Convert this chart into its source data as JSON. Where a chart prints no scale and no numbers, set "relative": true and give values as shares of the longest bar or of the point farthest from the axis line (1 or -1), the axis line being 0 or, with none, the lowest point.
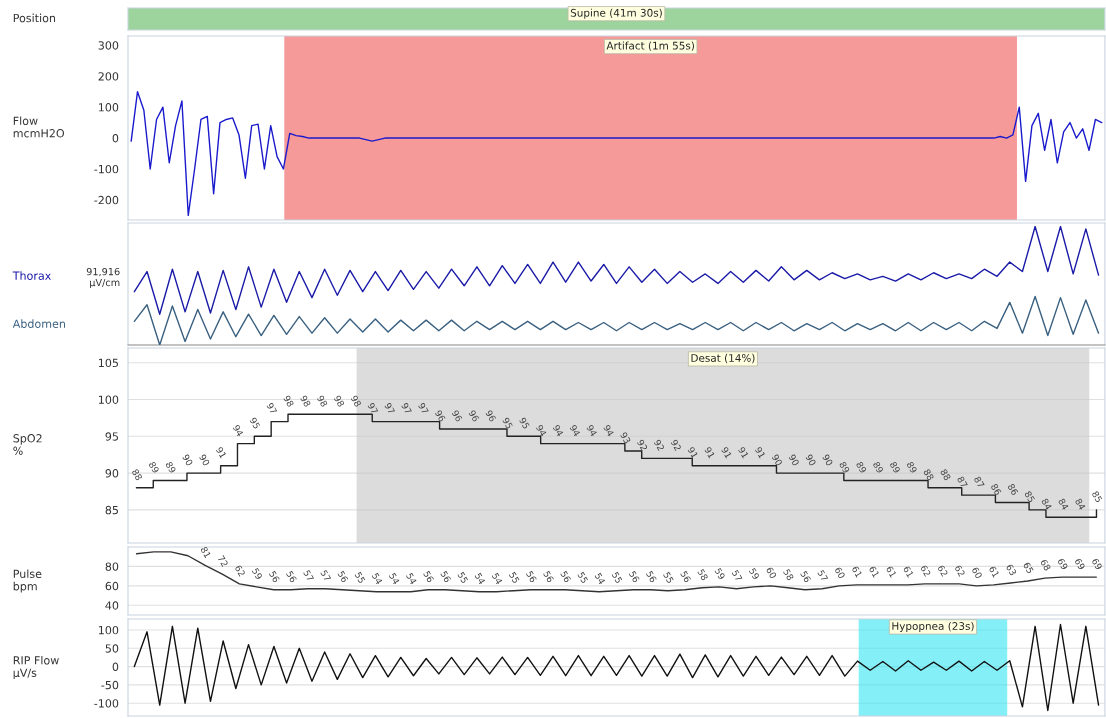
{
  "chart_data": [
    {
      "type": "other",
      "ylabel": "Position",
      "annotations": [
        "Supine (41m 30s)"
      ]
    },
    {
      "type": "line",
      "ylabel": "Flow\nmcmH2O",
      "ylim": [
        -265,
        330
      ],
      "yticks": [
        -200,
        -100,
        0,
        100,
        200,
        300
      ],
      "tick_labels": "y",
      "categories": [
        null,
        null,
        null,
        null,
        null,
        null,
        null,
        null,
        null,
        null,
        null,
        null,
        null,
        null,
        null,
        null,
        null,
        null,
        null,
        null,
        null,
        null,
        null,
        null,
        null,
        null,
        null,
        null,
        null,
        null,
        null,
        null,
        null,
        null,
        null,
        null,
        null,
        null,
        null,
        null,
        null,
        null,
        null,
        null,
        null,
        null,
        null,
        null,
        null,
        null,
        null,
        null,
        null,
        null,
        null,
        null,
        null,
        null,
        null,
        null,
        null,
        null,
        null,
        null,
        null,
        null,
        null,
        null,
        null,
        null,
        null,
        null,
        null,
        null,
        null,
        null,
        null,
        null,
        null,
        null,
        null,
        null,
        null,
        null,
        null,
        null,
        null,
        null,
        null,
        null,
        null,
        null,
        null,
        null,
        null,
        null,
        null,
        null,
        null,
        null,
        null,
        null,
        null,
        null,
        null,
        null,
        null,
        null,
        null,
        null,
        null,
        null,
        null,
        null,
        null,
        null,
        null,
        null,
        null,
        null,
        null,
        null,
        null,
        null,
        null,
        null,
        null,
        null,
        null,
        null,
        null,
        null,
        null,
        null,
        null,
        null,
        null,
        null,
        null,
        null,
        null,
        null,
        null,
        null,
        null,
        null,
        null,
        null,
        null,
        null,
        null,
        null,
        null,
        null
      ],
      "series": [
        {
          "color": "#1a1acd",
          "values": [
            -10,
            150,
            90,
            -100,
            60,
            100,
            -80,
            40,
            120,
            -250,
            -100,
            60,
            70,
            -180,
            50,
            60,
            65,
            10,
            -130,
            40,
            45,
            -100,
            40,
            -60,
            -100,
            15,
            8,
            5,
            0,
            0,
            0,
            0,
            0,
            0,
            0,
            0,
            0,
            -5,
            -10,
            -5,
            0,
            0,
            0,
            0,
            0,
            0,
            0,
            0,
            0,
            0,
            0,
            0,
            0,
            0,
            0,
            0,
            0,
            0,
            0,
            0,
            0,
            0,
            0,
            0,
            0,
            0,
            0,
            0,
            0,
            0,
            0,
            0,
            0,
            0,
            0,
            0,
            0,
            0,
            0,
            0,
            0,
            0,
            0,
            0,
            0,
            0,
            0,
            0,
            0,
            0,
            0,
            0,
            0,
            0,
            0,
            0,
            0,
            0,
            0,
            0,
            0,
            0,
            0,
            0,
            0,
            0,
            0,
            0,
            0,
            0,
            0,
            0,
            0,
            0,
            0,
            0,
            0,
            0,
            0,
            0,
            0,
            0,
            0,
            0,
            0,
            0,
            0,
            0,
            0,
            0,
            0,
            0,
            0,
            0,
            0,
            0,
            0,
            5,
            0,
            10,
            100,
            -140,
            40,
            80,
            -40,
            60,
            -80,
            20,
            50,
            0,
            30,
            -40,
            60,
            50
          ]
        }
      ],
      "annotations": [
        "Artifact (1m 55s)"
      ]
    },
    {
      "type": "line",
      "relative": true,
      "tick_labels": false,
      "annotations": [
        "91,916\nµV/cm"
      ],
      "categories": [
        null,
        null,
        null,
        null,
        null,
        null,
        null,
        null,
        null,
        null,
        null,
        null,
        null,
        null,
        null,
        null,
        null,
        null,
        null,
        null,
        null,
        null,
        null,
        null,
        null,
        null,
        null,
        null,
        null,
        null,
        null,
        null,
        null,
        null,
        null,
        null,
        null,
        null,
        null,
        null,
        null,
        null,
        null,
        null,
        null,
        null,
        null,
        null,
        null,
        null,
        null,
        null,
        null,
        null,
        null,
        null,
        null,
        null,
        null,
        null,
        null,
        null,
        null,
        null,
        null,
        null,
        null,
        null,
        null,
        null,
        null,
        null,
        null,
        null,
        null,
        null,
        null
      ],
      "series": [
        {
          "name": "Thorax",
          "color": "#1a1aa8",
          "values": [
            0.45,
            0.62,
            0.26,
            0.64,
            0.28,
            0.62,
            0.27,
            0.63,
            0.3,
            0.66,
            0.32,
            0.64,
            0.36,
            0.62,
            0.4,
            0.64,
            0.42,
            0.63,
            0.45,
            0.62,
            0.46,
            0.63,
            0.47,
            0.62,
            0.48,
            0.64,
            0.5,
            0.66,
            0.5,
            0.67,
            0.52,
            0.68,
            0.52,
            0.7,
            0.53,
            0.7,
            0.54,
            0.68,
            0.52,
            0.66,
            0.53,
            0.64,
            0.52,
            0.62,
            0.53,
            0.6,
            0.52,
            0.62,
            0.53,
            0.63,
            0.54,
            0.66,
            0.55,
            0.63,
            0.55,
            0.61,
            0.56,
            0.6,
            0.55,
            0.58,
            0.54,
            0.6,
            0.55,
            0.61,
            0.56,
            0.6,
            0.56,
            0.64,
            0.58,
            0.7,
            0.62,
            1.0,
            0.62,
            1.0,
            0.6,
            0.98,
            0.59
          ]
        },
        {
          "name": "Abdomen",
          "color": "#3a6080",
          "values": [
            0.2,
            0.34,
            0.0,
            0.33,
            0.03,
            0.3,
            0.05,
            0.28,
            0.07,
            0.26,
            0.08,
            0.25,
            0.09,
            0.24,
            0.1,
            0.23,
            0.1,
            0.22,
            0.11,
            0.22,
            0.11,
            0.21,
            0.12,
            0.21,
            0.12,
            0.21,
            0.12,
            0.2,
            0.13,
            0.2,
            0.13,
            0.2,
            0.13,
            0.2,
            0.13,
            0.19,
            0.13,
            0.19,
            0.12,
            0.19,
            0.13,
            0.19,
            0.13,
            0.18,
            0.13,
            0.19,
            0.13,
            0.19,
            0.12,
            0.19,
            0.13,
            0.19,
            0.12,
            0.18,
            0.13,
            0.19,
            0.12,
            0.18,
            0.13,
            0.18,
            0.12,
            0.19,
            0.12,
            0.19,
            0.13,
            0.19,
            0.12,
            0.2,
            0.14,
            0.36,
            0.1,
            0.41,
            0.08,
            0.4,
            0.09,
            0.38,
            0.1
          ]
        }
      ]
    },
    {
      "type": "step",
      "ylabel": "SpO2\n%",
      "ylim": [
        80.5,
        107
      ],
      "yticks": [
        85,
        90,
        95,
        100,
        105
      ],
      "tick_labels": "y",
      "grid": "y",
      "data_labels": true,
      "categories": [
        null,
        null,
        null,
        null,
        null,
        null,
        null,
        null,
        null,
        null,
        null,
        null,
        null,
        null,
        null,
        null,
        null,
        null,
        null,
        null,
        null,
        null,
        null,
        null,
        null,
        null,
        null,
        null,
        null,
        null,
        null,
        null,
        null,
        null,
        null,
        null,
        null,
        null,
        null,
        null,
        null,
        null,
        null,
        null,
        null,
        null,
        null,
        null,
        null,
        null,
        null,
        null,
        null,
        null,
        null,
        null,
        null,
        null
      ],
      "series": [
        {
          "color": "#222222",
          "values": [
            88,
            89,
            89,
            90,
            90,
            91,
            94,
            95,
            97,
            98,
            98,
            98,
            98,
            98,
            97,
            97,
            97,
            97,
            96,
            96,
            96,
            96,
            95,
            95,
            94,
            94,
            94,
            94,
            94,
            93,
            92,
            92,
            92,
            91,
            91,
            91,
            91,
            91,
            90,
            90,
            90,
            90,
            89,
            89,
            89,
            89,
            89,
            88,
            88,
            87,
            87,
            86,
            86,
            85,
            84,
            84,
            84,
            85
          ]
        }
      ],
      "annotations": [
        "Desat (14%)"
      ]
    },
    {
      "type": "line",
      "ylabel": "Pulse\nbpm",
      "ylim": [
        30,
        100
      ],
      "yticks": [
        40,
        60,
        80
      ],
      "tick_labels": "y",
      "grid": "y",
      "categories": [
        null,
        null,
        null,
        null,
        null,
        null,
        null,
        null,
        null,
        null,
        null,
        null,
        null,
        null,
        null,
        null,
        null,
        null,
        null,
        null,
        null,
        null,
        null,
        null,
        null,
        null,
        null,
        null,
        null,
        null,
        null,
        null,
        null,
        null,
        null,
        null,
        null,
        null,
        null,
        null,
        null,
        null,
        null,
        null,
        null,
        null,
        null,
        null,
        null,
        null,
        null,
        null,
        null,
        null,
        null,
        null,
        null
      ],
      "series": [
        {
          "color": "#333333",
          "values": [
            93,
            95,
            95,
            91,
            81,
            72,
            62,
            59,
            56,
            56,
            57,
            57,
            56,
            55,
            54,
            54,
            54,
            56,
            56,
            55,
            54,
            54,
            55,
            56,
            56,
            56,
            55,
            54,
            55,
            56,
            56,
            55,
            56,
            58,
            59,
            57,
            59,
            60,
            58,
            56,
            57,
            60,
            61,
            61,
            61,
            61,
            62,
            62,
            62,
            60,
            61,
            63,
            65,
            68,
            69,
            69,
            69
          ],
          "value_labels": [
            null,
            null,
            null,
            null,
            "81",
            "72",
            "62",
            "59",
            "56",
            "56",
            "57",
            "57",
            "56",
            "55",
            "54",
            "54",
            "54",
            "56",
            "56",
            "55",
            "54",
            "54",
            "55",
            "56",
            "56",
            "56",
            "55",
            "54",
            "55",
            "56",
            "56",
            "55",
            "56",
            "58",
            "59",
            "57",
            "59",
            "60",
            "58",
            "56",
            "57",
            "60",
            "61",
            "61",
            "61",
            "61",
            "62",
            "62",
            "62",
            "60",
            "61",
            "63",
            "65",
            "68",
            "69",
            "69",
            "69"
          ]
        }
      ]
    },
    {
      "type": "line",
      "ylabel": "RIP Flow\nµV/s",
      "ylim": [
        -135,
        130
      ],
      "yticks": [
        -100,
        -50,
        0,
        50,
        100
      ],
      "tick_labels": "y",
      "grid": "y",
      "categories": [
        null,
        null,
        null,
        null,
        null,
        null,
        null,
        null,
        null,
        null,
        null,
        null,
        null,
        null,
        null,
        null,
        null,
        null,
        null,
        null,
        null,
        null,
        null,
        null,
        null,
        null,
        null,
        null,
        null,
        null,
        null,
        null,
        null,
        null,
        null,
        null,
        null,
        null,
        null,
        null,
        null,
        null,
        null,
        null,
        null,
        null,
        null,
        null,
        null,
        null,
        null,
        null,
        null,
        null,
        null,
        null,
        null,
        null,
        null,
        null,
        null,
        null,
        null,
        null,
        null,
        null,
        null,
        null,
        null,
        null,
        null,
        null,
        null,
        null,
        null,
        null,
        null
      ],
      "series": [
        {
          "color": "#111111",
          "values": [
            0,
            95,
            -105,
            110,
            -100,
            105,
            -95,
            70,
            -60,
            60,
            -50,
            55,
            -45,
            50,
            -40,
            40,
            -35,
            35,
            -30,
            30,
            -28,
            25,
            -25,
            22,
            -20,
            25,
            -22,
            24,
            -20,
            26,
            -22,
            25,
            -24,
            28,
            -25,
            30,
            -25,
            28,
            -24,
            30,
            -26,
            30,
            -26,
            34,
            -30,
            32,
            -28,
            30,
            -26,
            28,
            -24,
            26,
            -22,
            28,
            -24,
            30,
            -26,
            15,
            -10,
            14,
            -12,
            16,
            -10,
            12,
            -10,
            15,
            -12,
            14,
            -10,
            16,
            -110,
            110,
            -120,
            115,
            -100,
            110,
            -105
          ]
        }
      ],
      "annotations": [
        "Hypopnea (23s)"
      ]
    }
  ]
}
